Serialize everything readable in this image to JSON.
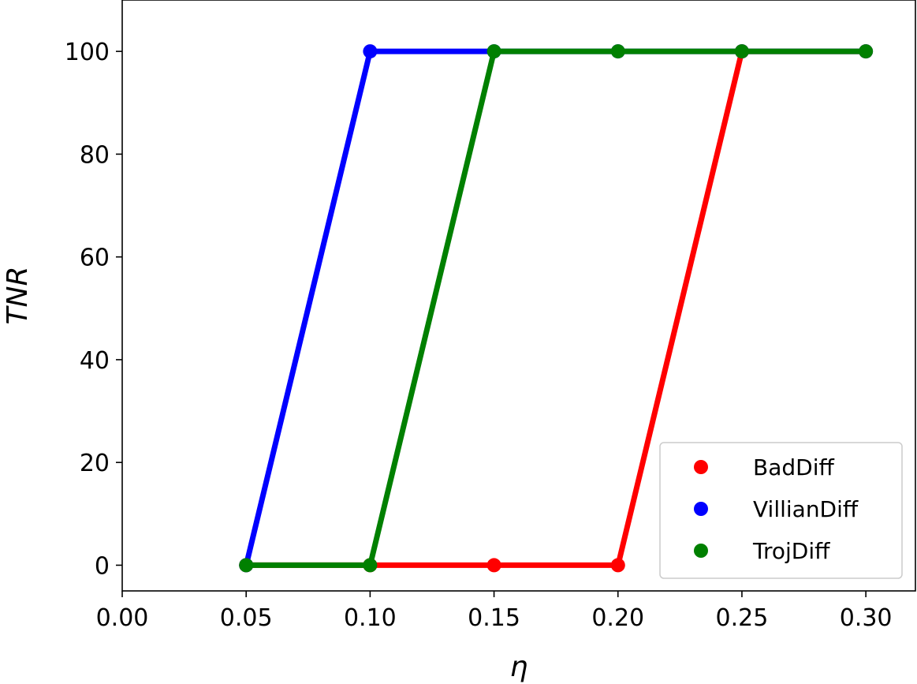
{
  "chart_data": {
    "type": "line",
    "title": "",
    "xlabel": "η",
    "ylabel": "TNR",
    "xlim": [
      0.0,
      0.32
    ],
    "ylim": [
      -5,
      110
    ],
    "xticks": [
      "0.00",
      "0.05",
      "0.10",
      "0.15",
      "0.20",
      "0.25",
      "0.30"
    ],
    "yticks": [
      "0",
      "20",
      "40",
      "60",
      "80",
      "100"
    ],
    "grid": false,
    "legend_position": "lower-right",
    "series": [
      {
        "name": "BadDiff",
        "color": "#ff0000",
        "x": [
          0.05,
          0.1,
          0.15,
          0.2,
          0.25,
          0.3
        ],
        "y": [
          0,
          0,
          0,
          0,
          100,
          100
        ]
      },
      {
        "name": "VillianDiff",
        "color": "#0000ff",
        "x": [
          0.05,
          0.1,
          0.15,
          0.2,
          0.25,
          0.3
        ],
        "y": [
          0,
          100,
          100,
          100,
          100,
          100
        ]
      },
      {
        "name": "TrojDiff",
        "color": "#008000",
        "x": [
          0.05,
          0.1,
          0.15,
          0.2,
          0.25,
          0.3
        ],
        "y": [
          0,
          0,
          100,
          100,
          100,
          100
        ]
      }
    ]
  }
}
